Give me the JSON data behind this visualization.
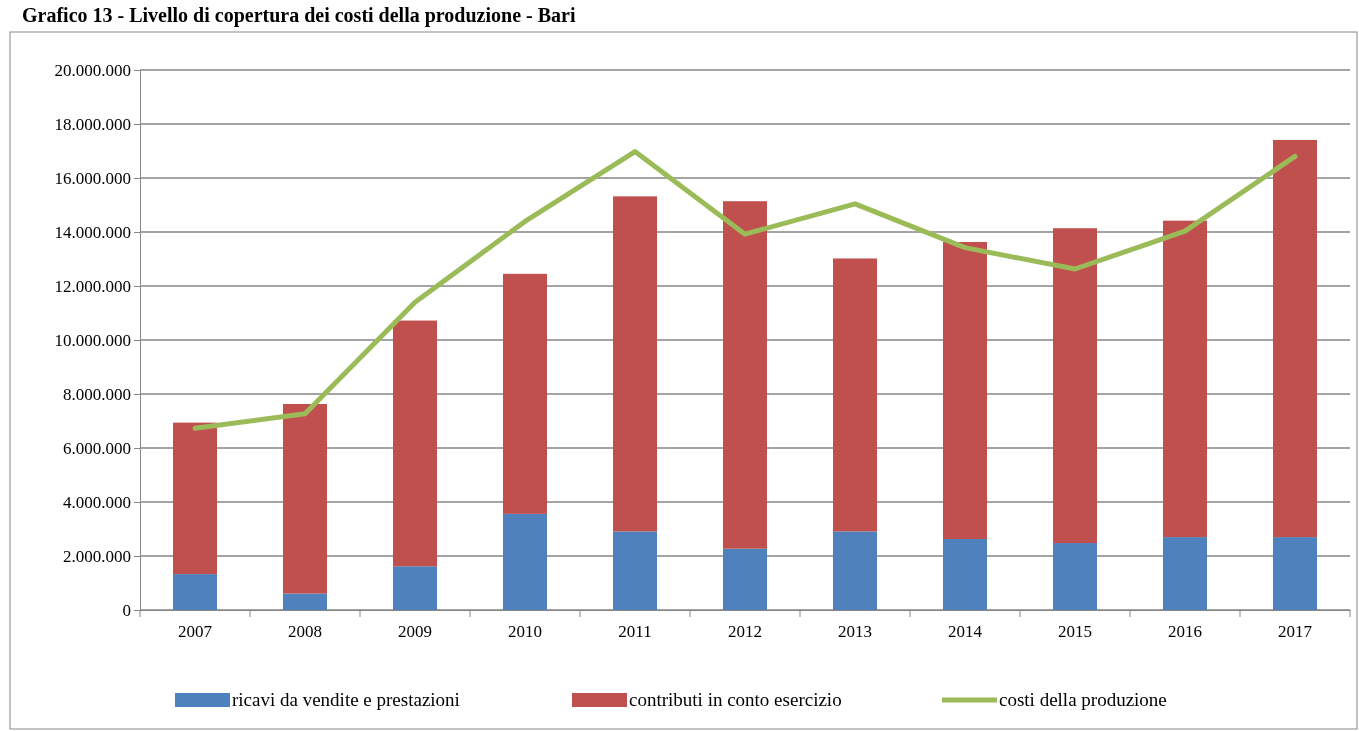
{
  "chart_data": {
    "type": "bar",
    "stacked": true,
    "title": "Grafico 13 - Livello di copertura dei costi della produzione - Bari",
    "categories": [
      "2007",
      "2008",
      "2009",
      "2010",
      "2011",
      "2012",
      "2013",
      "2014",
      "2015",
      "2016",
      "2017"
    ],
    "series": [
      {
        "name": "ricavi da vendite e prestazioni",
        "color": "#4f81bd",
        "values": [
          1330000,
          610000,
          1620000,
          3560000,
          2910000,
          2270000,
          2910000,
          2630000,
          2480000,
          2700000,
          2700000
        ]
      },
      {
        "name": "contributi in conto esercizio",
        "color": "#c0504d",
        "values": [
          5610000,
          7020000,
          9100000,
          8890000,
          12410000,
          12870000,
          10110000,
          11000000,
          11660000,
          11720000,
          14710000
        ]
      },
      {
        "name": "costi della produzione",
        "type": "line",
        "color": "#9bbb59",
        "values": [
          6730000,
          7270000,
          11400000,
          14390000,
          16980000,
          13920000,
          15040000,
          13420000,
          12630000,
          14030000,
          16800000
        ]
      }
    ],
    "ylim": [
      0,
      20000000
    ],
    "yticks": [
      0,
      {
        "value": 2000000,
        "label": "2.000.000"
      },
      {
        "value": 4000000,
        "label": "4.000.000"
      },
      {
        "value": 6000000,
        "label": "6.000.000"
      },
      {
        "value": 8000000,
        "label": "8.000.000"
      },
      {
        "value": 10000000,
        "label": "10.000.000"
      },
      {
        "value": 12000000,
        "label": "12.000.000"
      },
      {
        "value": 14000000,
        "label": "14.000.000"
      },
      {
        "value": 16000000,
        "label": "16.000.000"
      },
      {
        "value": 18000000,
        "label": "18.000.000"
      },
      {
        "value": 20000000,
        "label": "20.000.000"
      }
    ],
    "grid": "y",
    "legend": "bottom",
    "marker": "none"
  }
}
